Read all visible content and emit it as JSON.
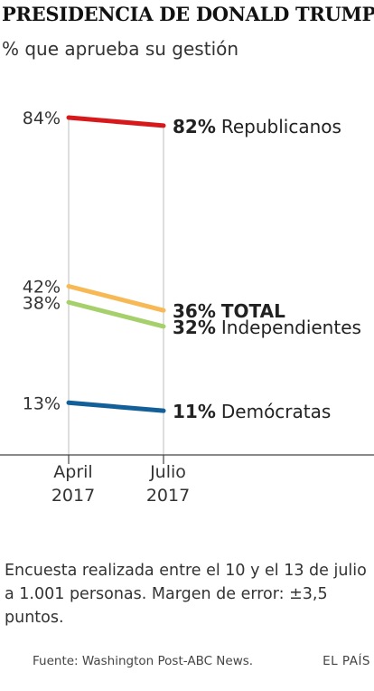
{
  "title": "PRESIDENCIA DE DONALD TRUMP",
  "subtitle": "% que aprueba su gestión",
  "chart_data": {
    "type": "line",
    "x": [
      "April 2017",
      "Julio 2017"
    ],
    "x_tick_lines": [
      [
        "April",
        "2017"
      ],
      [
        "Julio",
        "2017"
      ]
    ],
    "series": [
      {
        "name": "Republicanos",
        "values": [
          84,
          82
        ],
        "color": "#d7191c",
        "start_label": "84%",
        "end_pct": "82%",
        "bold_name": false
      },
      {
        "name": "TOTAL",
        "values": [
          42,
          36
        ],
        "color": "#f7b955",
        "start_label": "42%",
        "end_pct": "36%",
        "bold_name": true
      },
      {
        "name": "Independientes",
        "values": [
          38,
          32
        ],
        "color": "#a6d06b",
        "start_label": "38%",
        "end_pct": "32%",
        "bold_name": false
      },
      {
        "name": "Demócratas",
        "values": [
          13,
          11
        ],
        "color": "#135f9a",
        "start_label": "13%",
        "end_pct": "11%",
        "bold_name": false
      }
    ],
    "ylim": [
      0,
      90
    ],
    "xlabel": "",
    "ylabel": ""
  },
  "note": "Encuesta realizada entre el 10 y el 13 de julio a 1.001 personas. Margen de error: ±3,5 puntos.",
  "source": "Fuente: Washington Post-ABC News.",
  "brand": "EL PAÍS"
}
